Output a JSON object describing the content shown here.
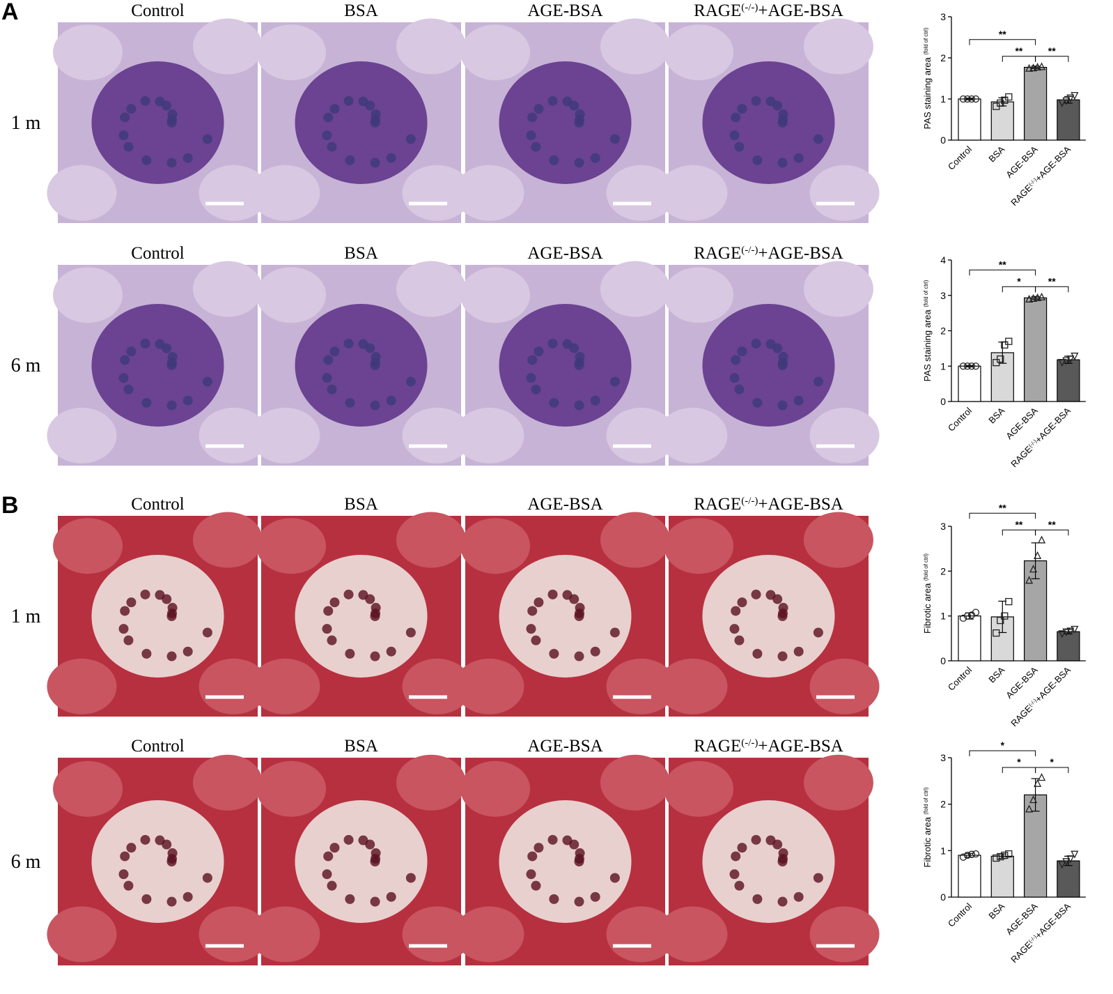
{
  "figure": {
    "panels": [
      {
        "letter": "A",
        "rows": [
          {
            "label": "1 m",
            "titles": [
              "Control",
              "BSA",
              "AGE-BSA",
              "RAGE(-/-)+AGE-BSA"
            ]
          },
          {
            "label": "6 m",
            "titles": [
              "Control",
              "BSA",
              "AGE-BSA",
              "RAGE(-/-)+AGE-BSA"
            ]
          }
        ]
      },
      {
        "letter": "B",
        "rows": [
          {
            "label": "1 m",
            "titles": [
              "Control",
              "BSA",
              "AGE-BSA",
              "RAGE(-/-)+AGE-BSA"
            ]
          },
          {
            "label": "6 m",
            "titles": [
              "Control",
              "BSA",
              "AGE-BSA",
              "RAGE(-/-)+AGE-BSA"
            ]
          }
        ]
      }
    ]
  },
  "chart_data": [
    {
      "type": "bar",
      "y_label": "PAS staining area (fold of ctrl)",
      "categories": [
        "Control",
        "BSA",
        "AGE-BSA",
        "RAGE(-/-)+AGE-BSA"
      ],
      "values": [
        1.0,
        0.93,
        1.77,
        0.98
      ],
      "errors": [
        0.02,
        0.1,
        0.03,
        0.08
      ],
      "points": [
        [
          1.0,
          1.0,
          1.0,
          1.0
        ],
        [
          0.82,
          0.9,
          0.97,
          1.05
        ],
        [
          1.75,
          1.76,
          1.78,
          1.79
        ],
        [
          0.9,
          0.95,
          1.02,
          1.08
        ]
      ],
      "colors": [
        "#ffffff",
        "#d9d9d9",
        "#a6a6a6",
        "#595959"
      ],
      "markers": [
        "circle",
        "square",
        "triangle",
        "triangle-down"
      ],
      "ylim": [
        0,
        3
      ],
      "yticks": [
        0,
        1,
        2,
        3
      ],
      "comparisons": [
        {
          "groups": [
            0,
            2
          ],
          "label": "**"
        },
        {
          "groups": [
            1,
            2
          ],
          "label": "**"
        },
        {
          "groups": [
            2,
            3
          ],
          "label": "**"
        }
      ]
    },
    {
      "type": "bar",
      "y_label": "PAS staining area (fold of ctrl)",
      "categories": [
        "Control",
        "BSA",
        "AGE-BSA",
        "RAGE(-/-)+AGE-BSA"
      ],
      "values": [
        1.0,
        1.38,
        2.93,
        1.18
      ],
      "errors": [
        0.02,
        0.3,
        0.04,
        0.1
      ],
      "points": [
        [
          1.0,
          1.0,
          1.0,
          1.0
        ],
        [
          1.1,
          1.2,
          1.6,
          1.7
        ],
        [
          2.9,
          2.92,
          2.94,
          2.96
        ],
        [
          1.1,
          1.15,
          1.2,
          1.28
        ]
      ],
      "colors": [
        "#ffffff",
        "#d9d9d9",
        "#a6a6a6",
        "#595959"
      ],
      "markers": [
        "circle",
        "square",
        "triangle",
        "triangle-down"
      ],
      "ylim": [
        0,
        4
      ],
      "yticks": [
        0,
        1,
        2,
        3,
        4
      ],
      "comparisons": [
        {
          "groups": [
            0,
            2
          ],
          "label": "**"
        },
        {
          "groups": [
            1,
            2
          ],
          "label": "*"
        },
        {
          "groups": [
            2,
            3
          ],
          "label": "**"
        }
      ]
    },
    {
      "type": "bar",
      "y_label": "Fibrotic area (fold of ctrl)",
      "categories": [
        "Control",
        "BSA",
        "AGE-BSA",
        "RAGE(-/-)+AGE-BSA"
      ],
      "values": [
        1.0,
        0.98,
        2.23,
        0.65
      ],
      "errors": [
        0.07,
        0.35,
        0.4,
        0.05
      ],
      "points": [
        [
          0.95,
          1.0,
          1.02,
          1.08
        ],
        [
          0.62,
          0.9,
          1.0,
          1.32
        ],
        [
          1.8,
          2.05,
          2.35,
          2.7
        ],
        [
          0.6,
          0.64,
          0.66,
          0.7
        ]
      ],
      "colors": [
        "#ffffff",
        "#d9d9d9",
        "#a6a6a6",
        "#595959"
      ],
      "markers": [
        "circle",
        "square",
        "triangle",
        "triangle-down"
      ],
      "ylim": [
        0,
        3
      ],
      "yticks": [
        0,
        1,
        2,
        3
      ],
      "comparisons": [
        {
          "groups": [
            0,
            2
          ],
          "label": "**"
        },
        {
          "groups": [
            1,
            2
          ],
          "label": "**"
        },
        {
          "groups": [
            2,
            3
          ],
          "label": "**"
        }
      ]
    },
    {
      "type": "bar",
      "y_label": "Fibrotic area (fold of ctrl)",
      "categories": [
        "Control",
        "BSA",
        "AGE-BSA",
        "RAGE(-/-)+AGE-BSA"
      ],
      "values": [
        0.9,
        0.88,
        2.2,
        0.78
      ],
      "errors": [
        0.04,
        0.05,
        0.35,
        0.1
      ],
      "points": [
        [
          0.86,
          0.9,
          0.92,
          0.93
        ],
        [
          0.84,
          0.87,
          0.9,
          0.93
        ],
        [
          1.9,
          2.1,
          2.45,
          2.58
        ],
        [
          0.7,
          0.76,
          0.82,
          0.92
        ]
      ],
      "colors": [
        "#ffffff",
        "#d9d9d9",
        "#a6a6a6",
        "#595959"
      ],
      "markers": [
        "circle",
        "square",
        "triangle",
        "triangle-down"
      ],
      "ylim": [
        0,
        3
      ],
      "yticks": [
        0,
        1,
        2,
        3
      ],
      "comparisons": [
        {
          "groups": [
            0,
            2
          ],
          "label": "*"
        },
        {
          "groups": [
            1,
            2
          ],
          "label": "*"
        },
        {
          "groups": [
            2,
            3
          ],
          "label": "*"
        }
      ]
    }
  ]
}
